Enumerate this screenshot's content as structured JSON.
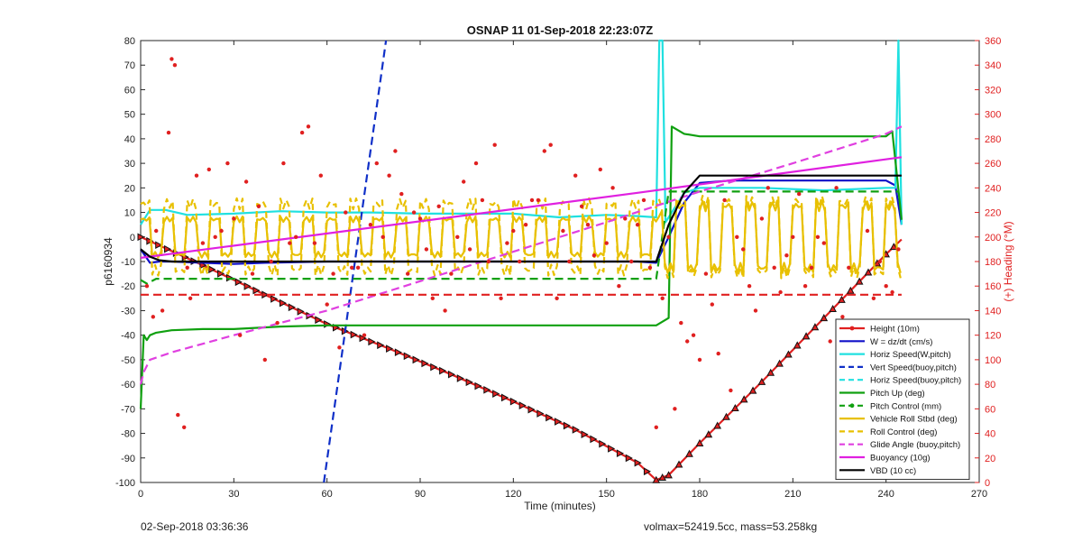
{
  "footer": {
    "end_time": "02-Sep-2018 03:36:36",
    "ballast": "volmax=52419.5cc, mass=53.258kg"
  },
  "chart_data": {
    "type": "line",
    "title": "OSNAP 11 01-Sep-2018 22:23:07Z",
    "xlabel": "Time (minutes)",
    "ylabel": "p6160934",
    "y2label": "(+) Heading (°M)",
    "xlim": [
      0,
      270
    ],
    "ylim": [
      -100,
      80
    ],
    "y2lim": [
      0,
      360
    ],
    "xticks": [
      0,
      30,
      60,
      90,
      120,
      150,
      180,
      210,
      240,
      270
    ],
    "yticks": [
      -100,
      -90,
      -80,
      -70,
      -60,
      -50,
      -40,
      -30,
      -20,
      -10,
      0,
      10,
      20,
      30,
      40,
      50,
      60,
      70,
      80
    ],
    "y2ticks": [
      0,
      20,
      40,
      60,
      80,
      100,
      120,
      140,
      160,
      180,
      200,
      220,
      240,
      260,
      280,
      300,
      320,
      340,
      360
    ],
    "legend_position": "bottom-right",
    "colors": {
      "height": "#e02020",
      "w": "#1010c8",
      "horiz_w": "#20e0e0",
      "vert_buoy": "#1030c8",
      "horiz_buoy": "#20e0e0",
      "pitch": "#10a010",
      "pitch_ctrl": "#10a010",
      "roll": "#e8c000",
      "roll_ctrl": "#e8c000",
      "glide": "#e040e0",
      "buoy": "#e020e0",
      "vbd": "#000000",
      "heading": "#e02020"
    },
    "series": [
      {
        "name": "Height (10m)",
        "key": "height",
        "style": "solid-marker",
        "x": [
          0,
          20,
          40,
          60,
          80,
          100,
          120,
          140,
          160,
          166,
          170,
          180,
          200,
          220,
          240,
          245
        ],
        "y": [
          0,
          -11.5,
          -23.5,
          -35.5,
          -45.5,
          -56,
          -67,
          -78.5,
          -92,
          -99,
          -97,
          -84,
          -59,
          -33,
          -7,
          -1
        ]
      },
      {
        "name": "W = dz/dt (cm/s)",
        "key": "w",
        "style": "solid",
        "x": [
          0,
          3,
          6,
          10,
          20,
          30,
          40,
          60,
          90,
          120,
          150,
          160,
          166,
          170,
          175,
          180,
          190,
          210,
          240,
          243,
          245
        ],
        "y": [
          -5,
          -10.5,
          -10,
          -10,
          -10.5,
          -11,
          -10.5,
          -10,
          -10,
          -10,
          -10,
          -10,
          -10.5,
          0,
          14,
          22,
          23,
          23,
          23,
          21,
          5
        ]
      },
      {
        "name": "Horiz Speed(W,pitch)",
        "key": "horiz_w",
        "style": "solid",
        "x": [
          0,
          3,
          8,
          15,
          30,
          45,
          60,
          75,
          90,
          105,
          120,
          135,
          150,
          160,
          166,
          167,
          168,
          169,
          170,
          175,
          180,
          200,
          220,
          240,
          243,
          244,
          245
        ],
        "y": [
          5,
          11,
          11,
          9,
          9.5,
          10.5,
          10,
          10,
          9.5,
          9.5,
          9.5,
          8,
          9,
          8.5,
          8,
          80,
          80,
          6,
          8,
          18,
          20,
          20,
          19,
          20,
          20,
          80,
          5
        ]
      },
      {
        "name": "Vert Speed(buoy,pitch)",
        "key": "vert_buoy",
        "style": "dashed",
        "x": [
          59,
          79
        ],
        "y": [
          -100,
          80
        ]
      },
      {
        "name": "Horiz Speed(buoy,pitch)",
        "key": "horiz_buoy",
        "style": "dashed",
        "x": [],
        "y": []
      },
      {
        "name": "Pitch Up (deg)",
        "key": "pitch",
        "style": "solid",
        "x": [
          0,
          1,
          2,
          3,
          5,
          10,
          20,
          30,
          45,
          60,
          90,
          120,
          150,
          165,
          166,
          170,
          171,
          175,
          180,
          200,
          220,
          240,
          242,
          245
        ],
        "y": [
          -70,
          -40,
          -42,
          -40,
          -39,
          -38,
          -37.5,
          -37.5,
          -36.5,
          -36,
          -36,
          -36,
          -36,
          -36,
          -36,
          -33,
          45,
          42,
          41,
          41,
          41,
          41,
          43,
          7
        ]
      },
      {
        "name": "Pitch Control (mm)",
        "key": "pitch_ctrl",
        "style": "dashed",
        "x": [
          0,
          2,
          5,
          166,
          170,
          180,
          244
        ],
        "y": [
          -17.5,
          -19,
          -17,
          -17,
          18.5,
          18.5,
          18.5
        ]
      },
      {
        "name": "Vehicle Roll Stbd (deg)",
        "key": "roll",
        "style": "solid-oscillating",
        "x": [
          0,
          165,
          170,
          245
        ],
        "y": [
          0,
          0,
          0,
          0
        ],
        "amplitude_dive": 8,
        "amplitude_climb": 14
      },
      {
        "name": "Roll Control (deg)",
        "key": "roll_ctrl",
        "style": "dashed-oscillating",
        "x": [
          0,
          165,
          170,
          245
        ],
        "y": [
          0,
          0,
          0,
          0
        ],
        "amplitude_dive": 15,
        "amplitude_climb": 16
      },
      {
        "name": "Glide Angle (buoy,pitch)",
        "key": "glide",
        "style": "dashed",
        "x": [
          0,
          1,
          3,
          10,
          30,
          60,
          90,
          120,
          150,
          180,
          210,
          240,
          245
        ],
        "y": [
          -60,
          -55,
          -50,
          -47,
          -40,
          -30,
          -18,
          -6,
          6,
          18.5,
          30,
          42,
          45
        ]
      },
      {
        "name": "Buoyancy (10g)",
        "key": "buoy",
        "style": "solid",
        "x": [
          0,
          160,
          245
        ],
        "y": [
          -8.5,
          18,
          32.5
        ]
      },
      {
        "name": "VBD (10 cc)",
        "key": "vbd",
        "style": "solid",
        "x": [
          0,
          3,
          6,
          10,
          20,
          60,
          120,
          160,
          166,
          170,
          175,
          180,
          245
        ],
        "y": [
          -5,
          -8,
          -9.5,
          -10,
          -10,
          -10,
          -10,
          -10,
          -10,
          5,
          18,
          25,
          25
        ]
      },
      {
        "name": "Pitch Control dashed red",
        "key": "pitch_red",
        "legend": false,
        "style": "dashed",
        "x": [
          0,
          245
        ],
        "y": [
          -23.5,
          -23.5
        ]
      }
    ],
    "heading_scatter": {
      "axis": "right",
      "x": [
        2,
        4,
        5,
        7,
        9,
        10,
        11,
        12,
        14,
        15,
        16,
        18,
        20,
        22,
        24,
        26,
        28,
        30,
        32,
        34,
        36,
        38,
        40,
        42,
        44,
        46,
        48,
        50,
        52,
        54,
        56,
        58,
        60,
        62,
        64,
        66,
        68,
        70,
        72,
        74,
        76,
        78,
        80,
        82,
        84,
        86,
        88,
        90,
        92,
        94,
        96,
        98,
        100,
        102,
        104,
        106,
        108,
        110,
        112,
        114,
        116,
        118,
        120,
        122,
        124,
        126,
        128,
        130,
        132,
        134,
        136,
        138,
        140,
        142,
        144,
        146,
        148,
        150,
        152,
        154,
        156,
        158,
        160,
        162,
        164,
        166,
        168,
        170,
        172,
        174,
        176,
        178,
        180,
        182,
        184,
        186,
        188,
        190,
        192,
        194,
        196,
        198,
        200,
        202,
        204,
        206,
        208,
        210,
        212,
        214,
        216,
        218,
        220,
        222,
        224,
        226,
        228,
        230,
        232,
        234,
        236,
        238,
        240,
        242,
        244
      ],
      "y": [
        160,
        135,
        205,
        140,
        285,
        345,
        340,
        55,
        45,
        175,
        150,
        250,
        195,
        255,
        200,
        205,
        260,
        215,
        120,
        245,
        170,
        225,
        100,
        180,
        130,
        260,
        195,
        200,
        285,
        290,
        195,
        250,
        145,
        170,
        110,
        220,
        175,
        175,
        120,
        210,
        260,
        200,
        250,
        270,
        235,
        170,
        220,
        215,
        190,
        150,
        225,
        140,
        170,
        200,
        245,
        190,
        260,
        230,
        180,
        275,
        150,
        195,
        205,
        180,
        210,
        230,
        230,
        270,
        275,
        150,
        205,
        180,
        250,
        225,
        210,
        185,
        255,
        195,
        240,
        160,
        215,
        180,
        210,
        230,
        175,
        45,
        150,
        200,
        60,
        130,
        115,
        120,
        100,
        170,
        145,
        105,
        230,
        75,
        200,
        190,
        160,
        140,
        215,
        240,
        175,
        155,
        185,
        200,
        235,
        160,
        175,
        200,
        195,
        115,
        240,
        135,
        175,
        125,
        90,
        205,
        150,
        180,
        160,
        155,
        190
      ]
    }
  }
}
